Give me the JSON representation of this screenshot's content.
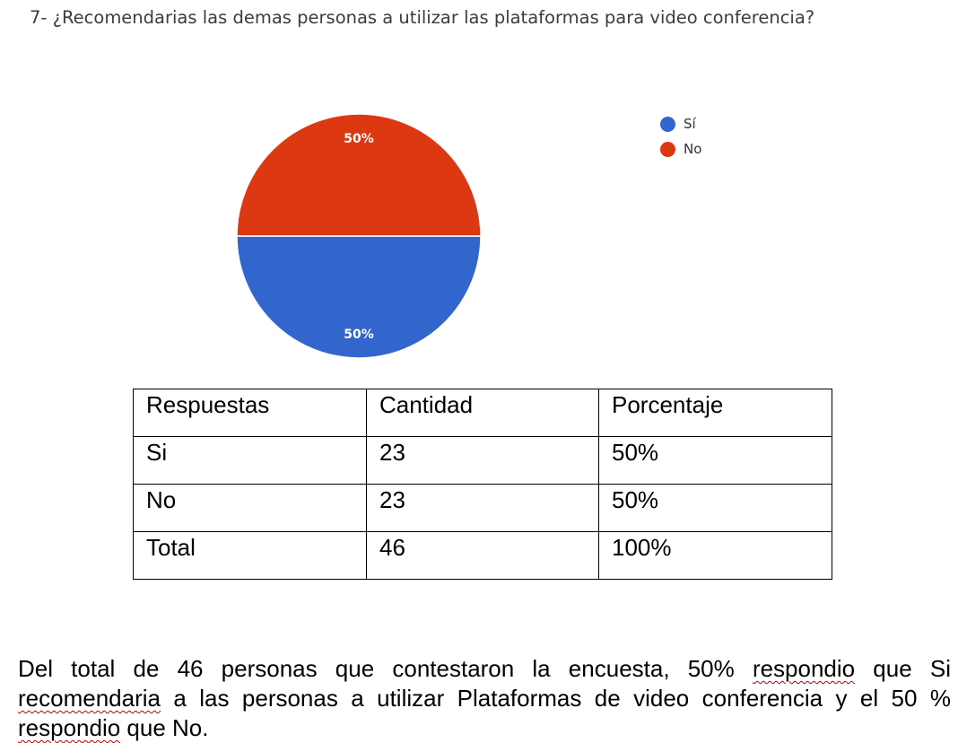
{
  "question": "7- ¿Recomendarias las demas personas a utilizar las plataformas para video conferencia?",
  "chart_data": {
    "type": "pie",
    "categories": [
      "Sí",
      "No"
    ],
    "values": [
      50,
      50
    ],
    "data_labels": [
      "50%",
      "50%"
    ],
    "colors": [
      "#3366cc",
      "#dc3912"
    ],
    "legend": "top-right"
  },
  "table": {
    "headers": [
      "Respuestas",
      "Cantidad",
      "Porcentaje"
    ],
    "rows": [
      [
        "Si",
        "23",
        "50%"
      ],
      [
        "No",
        "23",
        "50%"
      ],
      [
        "Total",
        "46",
        "100%"
      ]
    ]
  },
  "summary": {
    "part1": "Del total de 46 personas que contestaron la encuesta, 50% ",
    "w1": "respondio",
    "part2": " que Si ",
    "w2": "recomendaria",
    "part3": " a las personas a utilizar Plataformas de video conferencia y el 50 % ",
    "w3": "respondio",
    "part4": " que No."
  }
}
